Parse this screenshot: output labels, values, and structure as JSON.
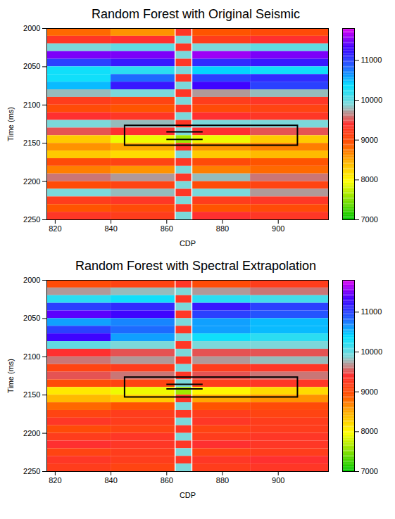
{
  "chart_data": [
    {
      "type": "heatmap",
      "title": "Random Forest with Original Seismic",
      "x_label": "CDP",
      "y_label": "Time (ms)",
      "xlim": [
        817,
        918
      ],
      "ylim": [
        2000,
        2250
      ],
      "xticks": [
        820,
        840,
        860,
        880,
        900
      ],
      "yticks": [
        2000,
        2050,
        2100,
        2150,
        2200,
        2250
      ],
      "x_edges": [
        817,
        840,
        863,
        869,
        890,
        918
      ],
      "y_edges": [
        2000,
        2010,
        2020,
        2030,
        2040,
        2050,
        2060,
        2070,
        2080,
        2090,
        2100,
        2110,
        2120,
        2130,
        2140,
        2150,
        2160,
        2170,
        2180,
        2190,
        2200,
        2210,
        2220,
        2230,
        2240,
        2250
      ],
      "cells": [
        [
          8800,
          8600,
          9300,
          8900,
          9000
        ],
        [
          9300,
          9400,
          9900,
          9200,
          9400
        ],
        [
          9900,
          10000,
          9300,
          9900,
          10000
        ],
        [
          11500,
          11500,
          9900,
          11600,
          11500
        ],
        [
          11000,
          11200,
          9300,
          11100,
          11200
        ],
        [
          10300,
          10200,
          9900,
          10400,
          10300
        ],
        [
          10300,
          10800,
          9300,
          11000,
          11100
        ],
        [
          10500,
          11200,
          9900,
          11300,
          11000
        ],
        [
          9800,
          9900,
          9300,
          9700,
          9800
        ],
        [
          9200,
          9100,
          9900,
          9200,
          9300
        ],
        [
          9000,
          8900,
          9300,
          9000,
          9100
        ],
        [
          9400,
          9300,
          9900,
          9400,
          9300
        ],
        [
          9900,
          9800,
          9300,
          9900,
          9900
        ],
        [
          9500,
          9400,
          9900,
          9400,
          9500
        ],
        [
          8300,
          7900,
          7600,
          7900,
          8300
        ],
        [
          8600,
          8500,
          9300,
          8600,
          8700
        ],
        [
          8300,
          8200,
          9900,
          8300,
          8400
        ],
        [
          9000,
          9100,
          9300,
          9000,
          8900
        ],
        [
          8700,
          8600,
          9900,
          8700,
          8800
        ],
        [
          9600,
          9700,
          9300,
          9800,
          9600
        ],
        [
          9000,
          9100,
          9900,
          9000,
          9100
        ],
        [
          9900,
          9800,
          9300,
          9900,
          9700
        ],
        [
          9200,
          9300,
          9900,
          9200,
          9300
        ],
        [
          8900,
          9000,
          9300,
          8900,
          9000
        ],
        [
          9300,
          9200,
          9900,
          9400,
          9300
        ]
      ],
      "colorbar_range": [
        7000,
        11800
      ],
      "colorbar_ticks": [
        7000,
        8000,
        9000,
        10000,
        11000
      ],
      "box": {
        "x": [
          845,
          907
        ],
        "y": [
          2127,
          2153
        ]
      },
      "well": {
        "x": [
          863,
          869
        ]
      },
      "well_markers": [
        {
          "y": 2135,
          "x": [
            860,
            873
          ]
        },
        {
          "y": 2145,
          "x": [
            860,
            873
          ]
        }
      ]
    },
    {
      "type": "heatmap",
      "title": "Random Forest with Spectral Extrapolation",
      "x_label": "CDP",
      "y_label": "Time (ms)",
      "xlim": [
        817,
        918
      ],
      "ylim": [
        2000,
        2250
      ],
      "xticks": [
        820,
        840,
        860,
        880,
        900
      ],
      "yticks": [
        2000,
        2050,
        2100,
        2150,
        2200,
        2250
      ],
      "x_edges": [
        817,
        840,
        863,
        869,
        890,
        918
      ],
      "y_edges": [
        2000,
        2010,
        2020,
        2030,
        2040,
        2050,
        2060,
        2070,
        2080,
        2090,
        2100,
        2110,
        2120,
        2130,
        2140,
        2150,
        2160,
        2170,
        2180,
        2190,
        2200,
        2210,
        2220,
        2230,
        2240,
        2250
      ],
      "cells": [
        [
          9000,
          9100,
          9300,
          9000,
          9200
        ],
        [
          9700,
          9800,
          9900,
          9700,
          9600
        ],
        [
          10200,
          10300,
          9300,
          10200,
          10100
        ],
        [
          11000,
          11100,
          9900,
          11200,
          11000
        ],
        [
          11400,
          11300,
          9300,
          11000,
          10900
        ],
        [
          10600,
          10700,
          9900,
          10600,
          10500
        ],
        [
          11000,
          10800,
          9300,
          10600,
          10500
        ],
        [
          11300,
          10600,
          9900,
          10300,
          10200
        ],
        [
          10000,
          9900,
          9300,
          9900,
          9900
        ],
        [
          9400,
          9500,
          9900,
          9500,
          9500
        ],
        [
          9600,
          9700,
          9300,
          9700,
          9800
        ],
        [
          9100,
          9200,
          9900,
          9200,
          9300
        ],
        [
          9500,
          9600,
          9300,
          9500,
          9600
        ],
        [
          9000,
          9100,
          9900,
          9200,
          9300
        ],
        [
          8100,
          7900,
          7600,
          8000,
          8200
        ],
        [
          8400,
          8300,
          9300,
          8500,
          8600
        ],
        [
          8800,
          8900,
          9900,
          8900,
          9000
        ],
        [
          9100,
          9200,
          9300,
          9200,
          9100
        ],
        [
          9300,
          9200,
          9900,
          9300,
          9200
        ],
        [
          9000,
          9100,
          9300,
          9100,
          9200
        ],
        [
          9200,
          9300,
          9900,
          9200,
          9300
        ],
        [
          9400,
          9300,
          9300,
          9400,
          9300
        ],
        [
          9100,
          9200,
          9900,
          9100,
          9200
        ],
        [
          9300,
          9200,
          9300,
          9300,
          9400
        ],
        [
          9200,
          9100,
          9900,
          9200,
          9300
        ]
      ],
      "colorbar_range": [
        7000,
        11800
      ],
      "colorbar_ticks": [
        7000,
        8000,
        9000,
        10000,
        11000
      ],
      "box": {
        "x": [
          845,
          907
        ],
        "y": [
          2127,
          2153
        ]
      },
      "well": {
        "x": [
          863,
          869
        ]
      },
      "well_markers": [
        {
          "y": 2136,
          "x": [
            860,
            873
          ]
        },
        {
          "y": 2142,
          "x": [
            860,
            873
          ]
        }
      ]
    }
  ]
}
